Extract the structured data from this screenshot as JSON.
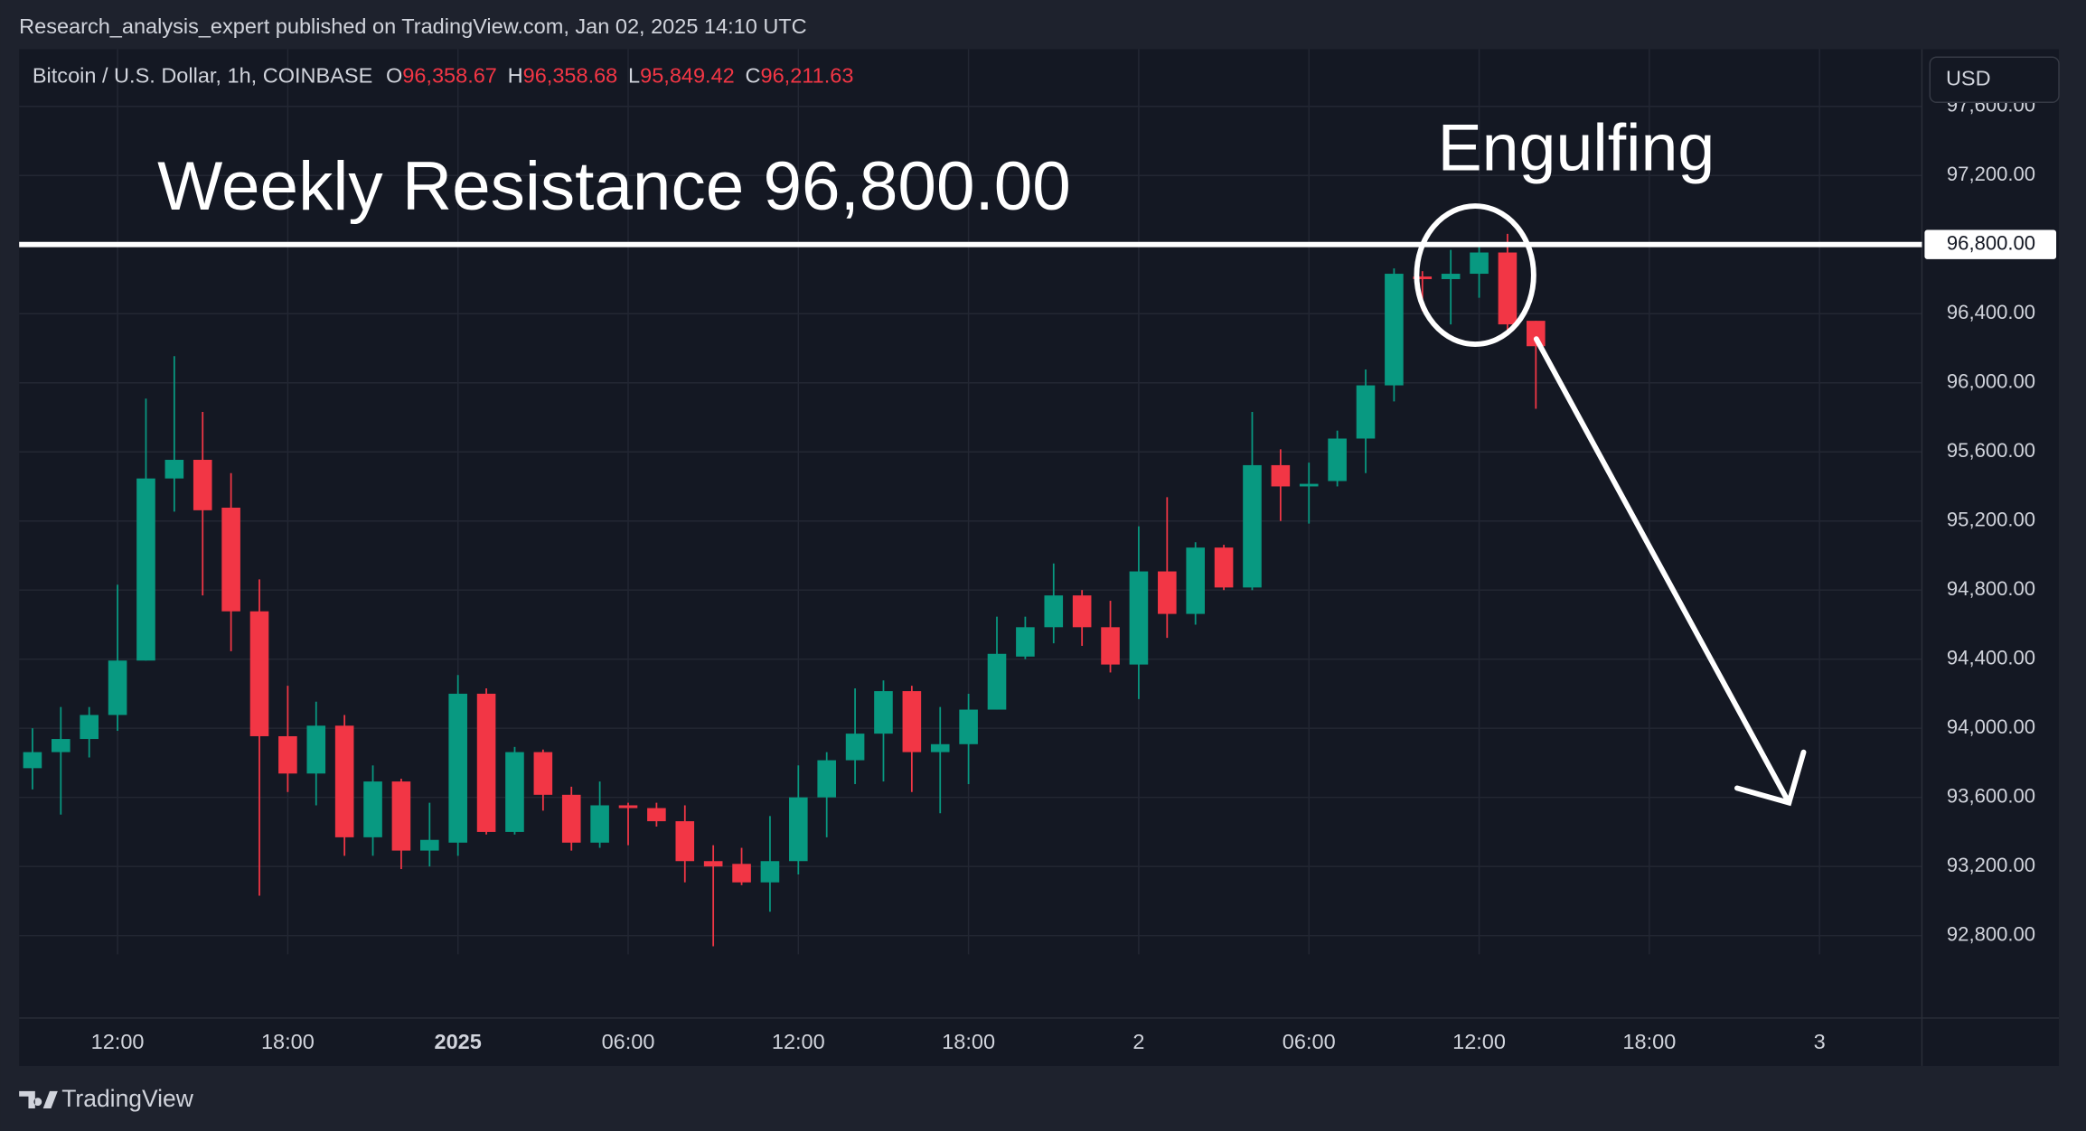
{
  "chart_data": {
    "type": "candlestick",
    "published": "Research_analysis_expert published on TradingView.com, Jan 02, 2025 14:10 UTC",
    "title": "Bitcoin / U.S. Dollar, 1h, COINBASE",
    "ohlc_header": [
      {
        "key": "O",
        "value": 96358.67,
        "label": "96,358.67"
      },
      {
        "key": "H",
        "value": 96358.68,
        "label": "96,358.68"
      },
      {
        "key": "L",
        "value": 95849.42,
        "label": "95,849.42"
      },
      {
        "key": "C",
        "value": 96211.63,
        "label": "96,211.63"
      }
    ],
    "currency": "USD",
    "brand": "TradingView",
    "up_color": "#089981",
    "down_color": "#f23645",
    "resistance": {
      "value": 96800,
      "label": "96,800.00",
      "text": "Weekly Resistance 96,800.00"
    },
    "pattern_label": "Engulfing",
    "x": [
      -15,
      -14,
      -13,
      -12,
      -11,
      -10,
      -9,
      -8,
      -7,
      -6,
      -5,
      -4,
      -3,
      -2,
      -1,
      0,
      1,
      2,
      3,
      4,
      5,
      6,
      7,
      8,
      9,
      10,
      11,
      12,
      13,
      14,
      15,
      16,
      17,
      18,
      19,
      20,
      21,
      22,
      23,
      24,
      25,
      26,
      27,
      28,
      29,
      30,
      31,
      32,
      33,
      34,
      35,
      36,
      37,
      38
    ],
    "open": [
      93769,
      93862,
      93938,
      94077,
      94392,
      95446,
      95554,
      95277,
      94677,
      93954,
      93738,
      94015,
      93369,
      93692,
      93292,
      93338,
      94200,
      93400,
      93862,
      93615,
      93338,
      93554,
      93538,
      93462,
      93231,
      93215,
      93108,
      93231,
      93600,
      93815,
      93969,
      94215,
      93862,
      93908,
      94108,
      94415,
      94585,
      94769,
      94585,
      94369,
      94908,
      94662,
      95046,
      94815,
      95523,
      95400,
      95431,
      95677,
      95985,
      96615,
      96600,
      96631,
      96754,
      96358.67
    ],
    "high": [
      94000,
      94123,
      94123,
      94831,
      95908,
      96154,
      95831,
      95477,
      94862,
      94246,
      94154,
      94077,
      93785,
      93708,
      93569,
      94308,
      94231,
      93892,
      93877,
      93662,
      93692,
      93569,
      93569,
      93554,
      93323,
      93308,
      93492,
      93785,
      93862,
      94231,
      94277,
      94246,
      94123,
      94200,
      94646,
      94646,
      94954,
      94800,
      94738,
      95169,
      95338,
      95077,
      95062,
      95831,
      95615,
      95538,
      95723,
      96077,
      96662,
      96646,
      96769,
      96785,
      96862,
      96358.68
    ],
    "low": [
      93646,
      93500,
      93831,
      93985,
      94392,
      95254,
      94769,
      94446,
      93031,
      93631,
      93554,
      93262,
      93262,
      93185,
      93200,
      93262,
      93385,
      93385,
      93523,
      93292,
      93308,
      93323,
      93431,
      93108,
      92738,
      93092,
      92938,
      93154,
      93369,
      93677,
      93692,
      93631,
      93508,
      93677,
      94108,
      94400,
      94492,
      94477,
      94323,
      94169,
      94523,
      94600,
      94800,
      94800,
      95200,
      95185,
      95400,
      95477,
      95892,
      96415,
      96338,
      96492,
      96308,
      95849.42
    ],
    "close": [
      93862,
      93938,
      94077,
      94392,
      95446,
      95554,
      95262,
      94677,
      93954,
      93738,
      94015,
      93369,
      93692,
      93292,
      93354,
      94200,
      93400,
      93862,
      93615,
      93338,
      93554,
      93538,
      93462,
      93231,
      93200,
      93108,
      93231,
      93600,
      93815,
      93969,
      94215,
      93862,
      93908,
      94108,
      94431,
      94585,
      94769,
      94585,
      94369,
      94908,
      94662,
      95046,
      94815,
      95523,
      95400,
      95415,
      95677,
      95985,
      96631,
      96600,
      96631,
      96754,
      96338,
      96211.63
    ],
    "ylim": [
      92692,
      97931
    ],
    "yticks": [
      {
        "value": 92800,
        "label": "92,800.00"
      },
      {
        "value": 93200,
        "label": "93,200.00"
      },
      {
        "value": 93600,
        "label": "93,600.00"
      },
      {
        "value": 94000,
        "label": "94,000.00"
      },
      {
        "value": 94400,
        "label": "94,400.00"
      },
      {
        "value": 94800,
        "label": "94,800.00"
      },
      {
        "value": 95200,
        "label": "95,200.00"
      },
      {
        "value": 95600,
        "label": "95,600.00"
      },
      {
        "value": 96000,
        "label": "96,000.00"
      },
      {
        "value": 96400,
        "label": "96,400.00"
      },
      {
        "value": 97200,
        "label": "97,200.00"
      },
      {
        "value": 97600,
        "label": "97,600.00"
      }
    ],
    "xlim": [
      -15.47,
      51.61
    ],
    "xticks": [
      {
        "value": -12,
        "label": "12:00"
      },
      {
        "value": -6,
        "label": "18:00"
      },
      {
        "value": 0,
        "label": "2025"
      },
      {
        "value": 6,
        "label": "06:00"
      },
      {
        "value": 12,
        "label": "12:00"
      },
      {
        "value": 18,
        "label": "18:00"
      },
      {
        "value": 24,
        "label": "2"
      },
      {
        "value": 30,
        "label": "06:00"
      },
      {
        "value": 36,
        "label": "12:00"
      },
      {
        "value": 42,
        "label": "18:00"
      },
      {
        "value": 48,
        "label": "3"
      }
    ],
    "grid": true
  }
}
